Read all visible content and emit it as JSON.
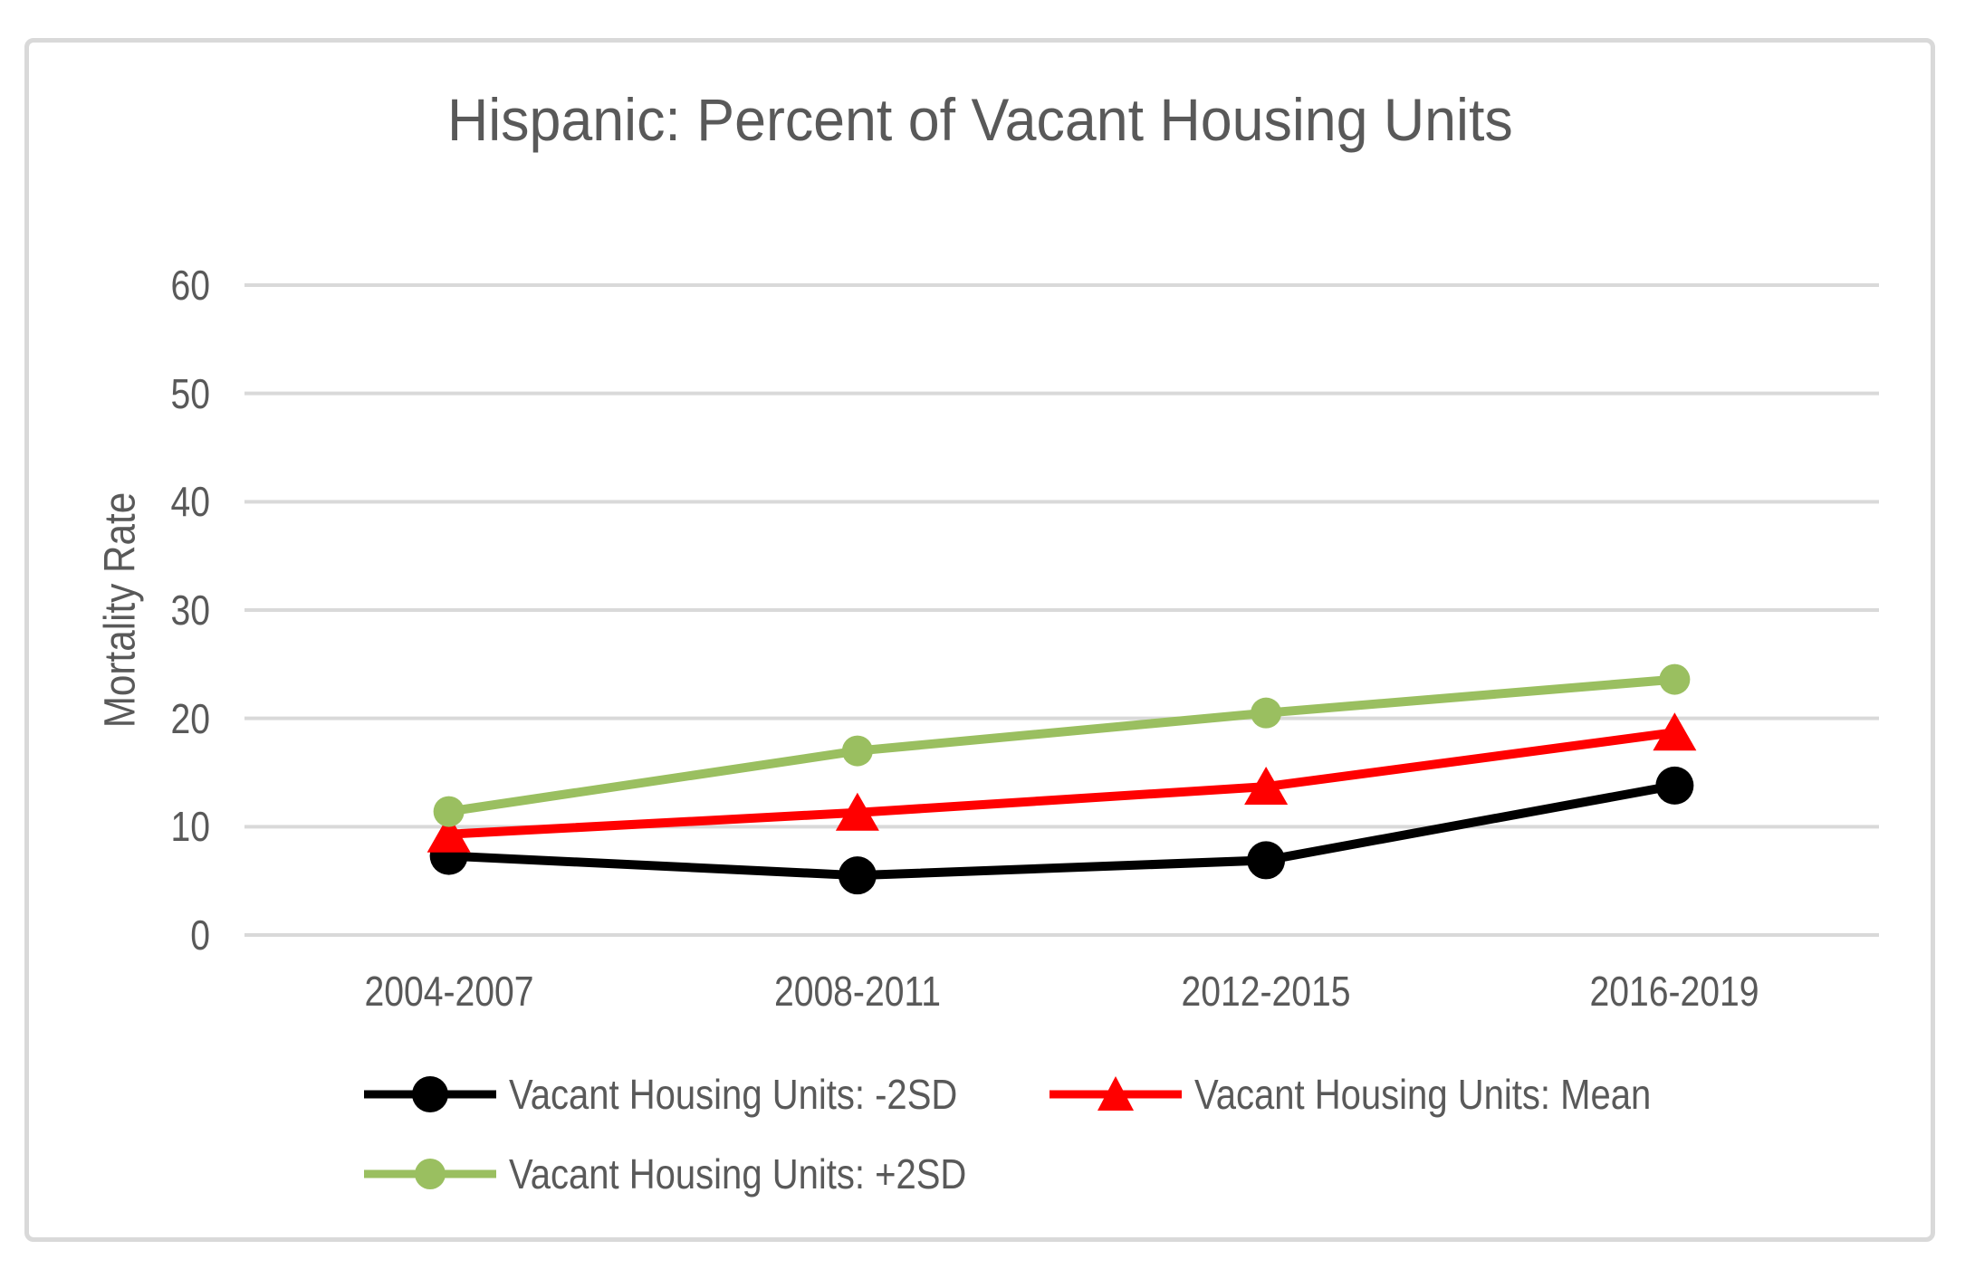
{
  "page": {
    "background": "#FFFFFF"
  },
  "frame": {
    "border_color": "#D9D9D9"
  },
  "chart_data": {
    "type": "line",
    "title": "Hispanic: Percent of Vacant Housing Units",
    "subtitle": "",
    "xlabel": "",
    "ylabel": "Mortality Rate",
    "categories": [
      "2004-2007",
      "2008-2011",
      "2012-2015",
      "2016-2019"
    ],
    "yticks": [
      0,
      10,
      20,
      30,
      40,
      50,
      60
    ],
    "ylim": [
      0,
      60
    ],
    "grid": true,
    "gridline_color": "#D9D9D9",
    "text_color": "#595959",
    "legend_position": "bottom-left",
    "legend_rows": [
      [
        0,
        1
      ],
      [
        2
      ]
    ],
    "series": [
      {
        "name": "Vacant Housing Units: -2SD",
        "color": "#000000",
        "marker": "circle",
        "values": [
          7.3,
          5.5,
          6.9,
          13.8
        ]
      },
      {
        "name": "Vacant Housing Units: Mean",
        "color": "#FF0000",
        "marker": "triangle",
        "values": [
          9.3,
          11.3,
          13.7,
          18.7
        ]
      },
      {
        "name": "Vacant Housing Units: +2SD",
        "color": "#9ABF60",
        "marker": "circle",
        "values": [
          11.4,
          17.0,
          20.5,
          23.6
        ]
      }
    ]
  }
}
